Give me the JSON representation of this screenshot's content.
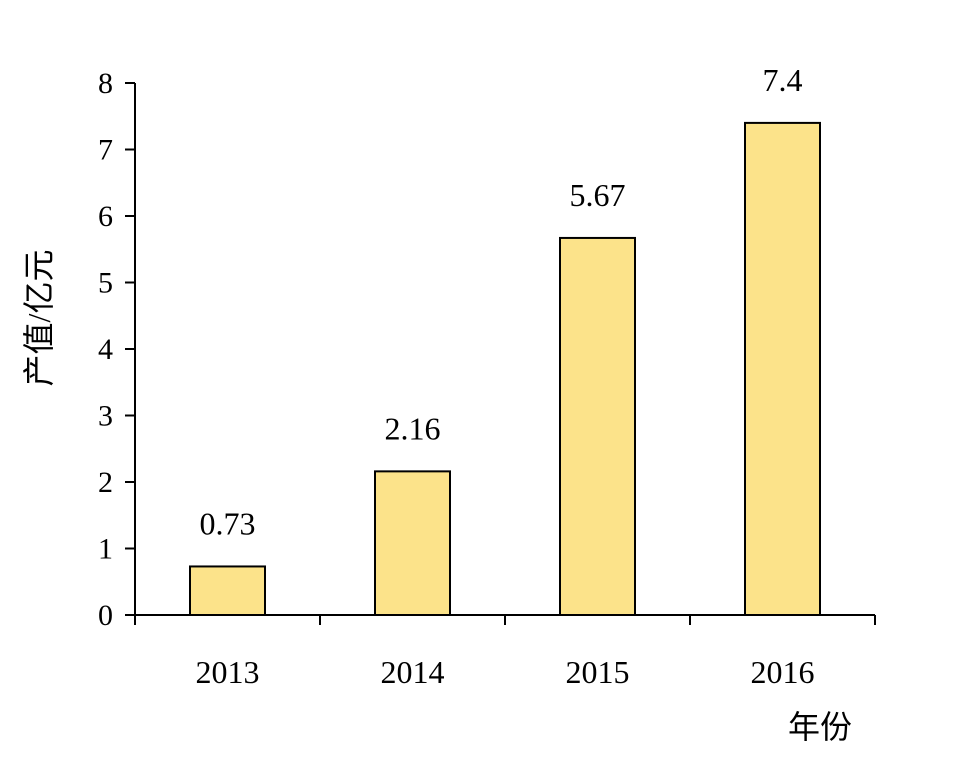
{
  "chart_data": {
    "type": "bar",
    "categories": [
      "2013",
      "2014",
      "2015",
      "2016"
    ],
    "values": [
      0.73,
      2.16,
      5.67,
      7.4
    ],
    "data_labels": [
      "0.73",
      "2.16",
      "5.67",
      "7.4"
    ],
    "ylabel": "产值/亿元",
    "xlabel": "年份",
    "ylim": [
      0,
      8
    ],
    "yticks": [
      "0",
      "1",
      "2",
      "3",
      "4",
      "5",
      "6",
      "7",
      "8"
    ],
    "grid": false,
    "bar_color": "#FCE38A",
    "bar_edge_color": "#000000"
  }
}
